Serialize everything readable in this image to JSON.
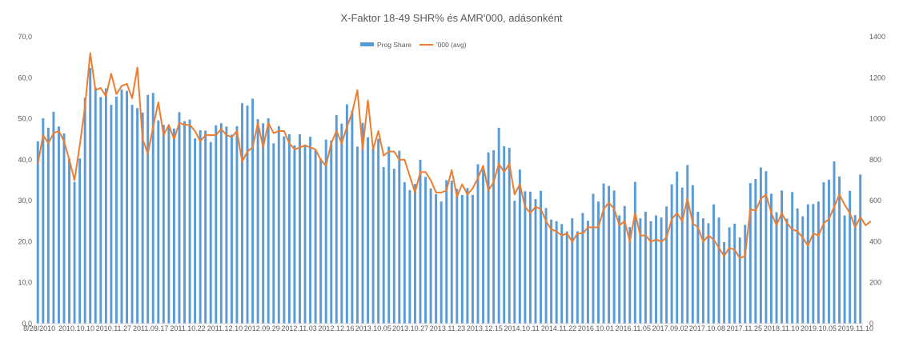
{
  "chart_data": {
    "type": "bar+line",
    "title": "X-Faktor 18-49 SHR% és AMR'000, adásonként",
    "legend_position": "top-center",
    "grid": false,
    "colors": {
      "bar": "#5B9BD5",
      "line": "#ED7D31",
      "axis": "#D9D9D9",
      "text": "#595959"
    },
    "y_left": {
      "range": [
        0,
        70
      ],
      "ticks": [
        "0,0",
        "10,0",
        "20,0",
        "30,0",
        "40,0",
        "50,0",
        "60,0",
        "70,0"
      ]
    },
    "y_right": {
      "range": [
        0,
        1400
      ],
      "ticks": [
        "0",
        "200",
        "400",
        "600",
        "800",
        "1000",
        "1200",
        "1400"
      ]
    },
    "x_tick_labels": [
      "8/28/2010",
      "2010.10.10",
      "2010.11.27",
      "2011.09.17",
      "2011.10.22",
      "2011.12.10",
      "2012.09.29",
      "2012.11.03",
      "2012.12.16",
      "2013.10.05",
      "2013.10.27",
      "2013.11.23",
      "2013.12.15",
      "2014.10.11",
      "2014.11.22",
      "2016.10.01",
      "2016.11.05",
      "2017.09.02",
      "2017.10.08",
      "2017.11.25",
      "2018.11.10",
      "2019.10.05",
      "2019.11.10"
    ],
    "series": [
      {
        "name": "Prog Share",
        "type": "bar",
        "axis": "left",
        "values": [
          44.5,
          50.1,
          47.8,
          51.7,
          48.1,
          46.4,
          40.2,
          34.6,
          40.3,
          55.1,
          62.4,
          57.6,
          55.3,
          57.4,
          53.4,
          55.4,
          57.1,
          56.8,
          53.4,
          52.6,
          51.5,
          55.8,
          56.3,
          49.6,
          48.5,
          48.2,
          47.6,
          51.6,
          49.4,
          49.8,
          45.2,
          47.2,
          47.1,
          44.3,
          48.4,
          48.9,
          48.1,
          46.1,
          48.2,
          53.8,
          53.2,
          54.9,
          49.9,
          48.9,
          50.1,
          44.0,
          48.2,
          45.7,
          46.2,
          43.5,
          46.2,
          43.6,
          45.6,
          42.3,
          40.3,
          44.9,
          44.7,
          50.9,
          48.8,
          53.5,
          51.9,
          43.2,
          49.0,
          45.5,
          42.8,
          45.1,
          38.2,
          43.2,
          37.8,
          42.2,
          34.5,
          32.6,
          34.1,
          40.0,
          35.8,
          33.0,
          31.6,
          29.8,
          35.0,
          34.9,
          32.9,
          31.4,
          33.1,
          31.4,
          38.9,
          37.7,
          41.8,
          42.3,
          47.8,
          43.3,
          42.9,
          30.0,
          37.6,
          32.3,
          32.2,
          30.4,
          32.4,
          28.2,
          25.4,
          25.0,
          24.3,
          22.5,
          25.7,
          22.5,
          27.0,
          25.1,
          31.7,
          29.8,
          34.2,
          33.6,
          32.5,
          26.4,
          28.7,
          23.6,
          34.6,
          25.7,
          27.3,
          25.0,
          26.4,
          25.9,
          28.6,
          34.0,
          37.1,
          33.2,
          38.7,
          33.8,
          27.3,
          25.7,
          24.5,
          29.1,
          25.9,
          19.9,
          23.5,
          24.4,
          21.0,
          24.1,
          34.3,
          35.3,
          38.1,
          37.2,
          31.7,
          27.2,
          32.5,
          25.6,
          32.1,
          28.1,
          26.2,
          29.1,
          29.2,
          29.8,
          34.5,
          35.1,
          39.6,
          35.9,
          26.4,
          32.4,
          26.5,
          36.4
        ]
      },
      {
        "name": "'000 (avg)",
        "type": "line",
        "axis": "right",
        "values": [
          780,
          920,
          880,
          930,
          940,
          890,
          800,
          700,
          870,
          1060,
          1320,
          1140,
          1150,
          1110,
          1220,
          1120,
          1160,
          1170,
          1100,
          1250,
          900,
          830,
          960,
          1080,
          920,
          970,
          900,
          980,
          970,
          970,
          940,
          890,
          920,
          920,
          920,
          950,
          920,
          910,
          940,
          790,
          840,
          860,
          980,
          860,
          980,
          930,
          940,
          940,
          880,
          850,
          860,
          870,
          860,
          850,
          800,
          770,
          880,
          940,
          880,
          960,
          1030,
          1140,
          850,
          1090,
          850,
          940,
          820,
          840,
          840,
          800,
          800,
          720,
          640,
          740,
          740,
          700,
          640,
          640,
          650,
          750,
          620,
          680,
          630,
          660,
          710,
          770,
          650,
          690,
          780,
          740,
          780,
          630,
          680,
          570,
          540,
          570,
          560,
          500,
          460,
          450,
          430,
          440,
          400,
          440,
          440,
          470,
          470,
          470,
          560,
          590,
          560,
          480,
          500,
          400,
          540,
          430,
          430,
          400,
          410,
          400,
          420,
          510,
          540,
          500,
          610,
          490,
          470,
          400,
          430,
          410,
          370,
          330,
          370,
          360,
          320,
          330,
          560,
          550,
          610,
          630,
          540,
          480,
          540,
          490,
          460,
          450,
          420,
          380,
          440,
          430,
          490,
          510,
          570,
          630,
          580,
          540,
          470,
          520,
          480,
          500
        ]
      }
    ]
  }
}
